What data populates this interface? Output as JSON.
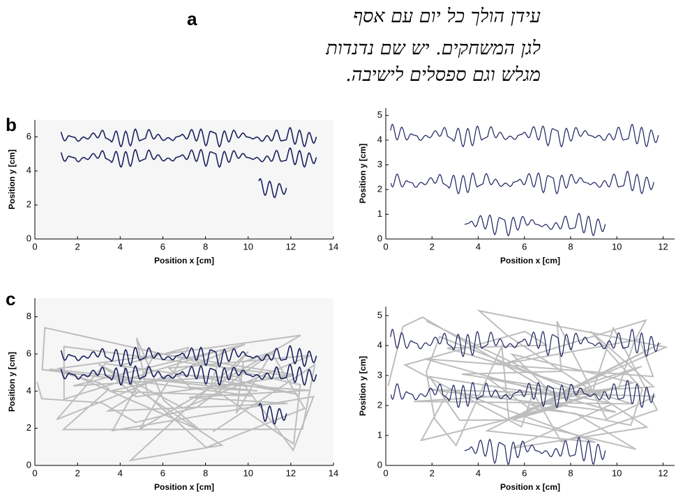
{
  "labels": [
    "a",
    "b",
    "c"
  ],
  "sentence": [
    "עידן הולך כל יום עם אסף",
    "לגן המשחקים. יש שם נדנדות",
    "מגלש וגם ספסלים לישיבה."
  ],
  "chart_data": [
    {
      "type": "line",
      "xlabel": "Position x [cm]",
      "ylabel": "Position y [cm]",
      "xlim": [
        0,
        14
      ],
      "ylim": [
        0,
        7
      ],
      "xticks": [
        0,
        2,
        4,
        6,
        8,
        10,
        12,
        14
      ],
      "yticks": [
        0,
        2,
        4,
        6
      ]
    },
    {
      "type": "line",
      "xlabel": "Position x [cm]",
      "ylabel": "Position y [cm]",
      "xlim": [
        0,
        12.5
      ],
      "ylim": [
        0,
        5.3
      ],
      "xticks": [
        0,
        2,
        4,
        6,
        8,
        10,
        12
      ],
      "yticks": [
        0,
        1,
        2,
        3,
        4,
        5
      ]
    },
    {
      "type": "line",
      "xlabel": "Position x [cm]",
      "ylabel": "Position y [cm]",
      "xlim": [
        0,
        14
      ],
      "ylim": [
        0,
        9
      ],
      "xticks": [
        0,
        2,
        4,
        6,
        8,
        10,
        12,
        14
      ],
      "yticks": [
        0,
        2,
        4,
        6,
        8
      ]
    },
    {
      "type": "line",
      "xlabel": "Position x [cm]",
      "ylabel": "Position y [cm]",
      "xlim": [
        0,
        12.5
      ],
      "ylim": [
        0,
        5.3
      ],
      "xticks": [
        0,
        2,
        4,
        6,
        8,
        10,
        12
      ],
      "yticks": [
        0,
        1,
        2,
        3,
        4,
        5
      ]
    }
  ]
}
